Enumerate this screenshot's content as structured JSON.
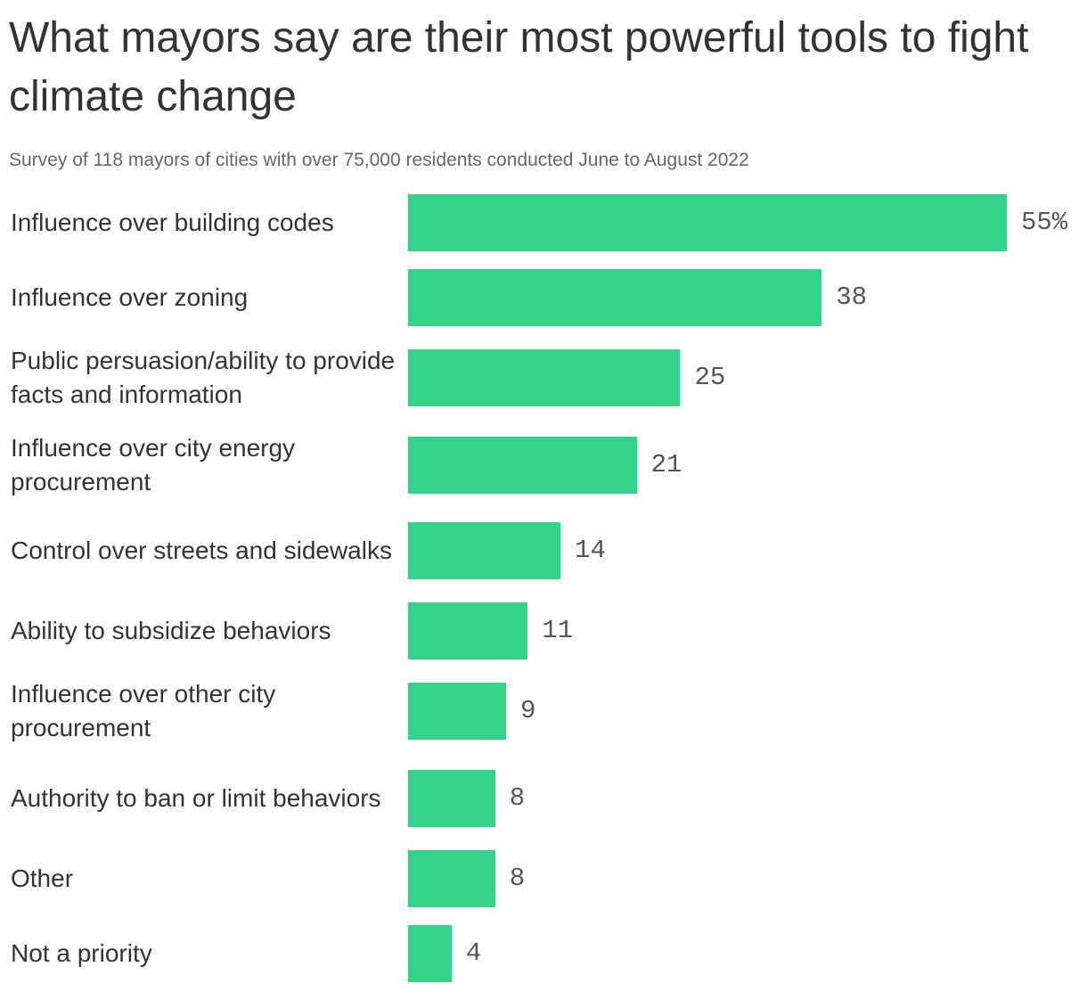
{
  "title": "What mayors say are their most powerful tools to fight climate change",
  "subtitle": "Survey of 118 mayors of cities with over 75,000 residents conducted June to August 2022",
  "colors": {
    "bar": "#33d489"
  },
  "chart_data": {
    "type": "bar",
    "orientation": "horizontal",
    "title": "What mayors say are their most powerful tools to fight climate change",
    "subtitle": "Survey of 118 mayors of cities with over 75,000 residents conducted June to August 2022",
    "xlabel": "",
    "ylabel": "",
    "xlim": [
      0,
      55
    ],
    "grid": false,
    "categories": [
      "Influence over building codes",
      "Influence over zoning",
      "Public persuasion/ability to provide facts and information",
      "Influence over city energy procurement",
      "Control over streets and sidewalks",
      "Ability to subsidize behaviors",
      "Influence over other city procurement",
      "Authority to ban or limit behaviors",
      "Other",
      "Not a priority"
    ],
    "values": [
      55,
      38,
      25,
      21,
      14,
      11,
      9,
      8,
      8,
      4
    ],
    "value_labels": [
      "55%",
      "38",
      "25",
      "21",
      "14",
      "11",
      "9",
      "8",
      "8",
      "4"
    ]
  }
}
